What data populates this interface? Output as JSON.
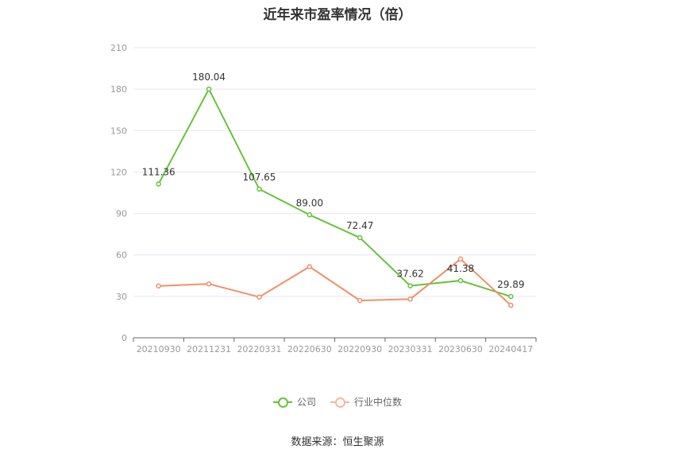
{
  "title": "近年来市盈率情况（倍）",
  "source": "数据来源：恒生聚源",
  "colors": {
    "company": "#67c23a",
    "industry": "#f0906a",
    "grid": "#e6e6f0",
    "axis": "#666666"
  },
  "chart_data": {
    "type": "line",
    "categories": [
      "20210930",
      "20211231",
      "20220331",
      "20220630",
      "20220930",
      "20230331",
      "20230630",
      "20240417"
    ],
    "series": [
      {
        "name": "公司",
        "values": [
          111.36,
          180.04,
          107.65,
          89.0,
          72.47,
          37.62,
          41.38,
          29.89
        ],
        "labels": [
          "111.36",
          "180.04",
          "107.65",
          "89.00",
          "72.47",
          "37.62",
          "41.38",
          "29.89"
        ]
      },
      {
        "name": "行业中位数",
        "values": [
          37.5,
          39.0,
          29.5,
          51.5,
          27.0,
          28.0,
          57.0,
          23.5
        ]
      }
    ],
    "ylim": [
      0,
      210
    ],
    "yticks": [
      0,
      30,
      60,
      90,
      120,
      150,
      180,
      210
    ],
    "grid": true,
    "legend": "bottom-center"
  }
}
